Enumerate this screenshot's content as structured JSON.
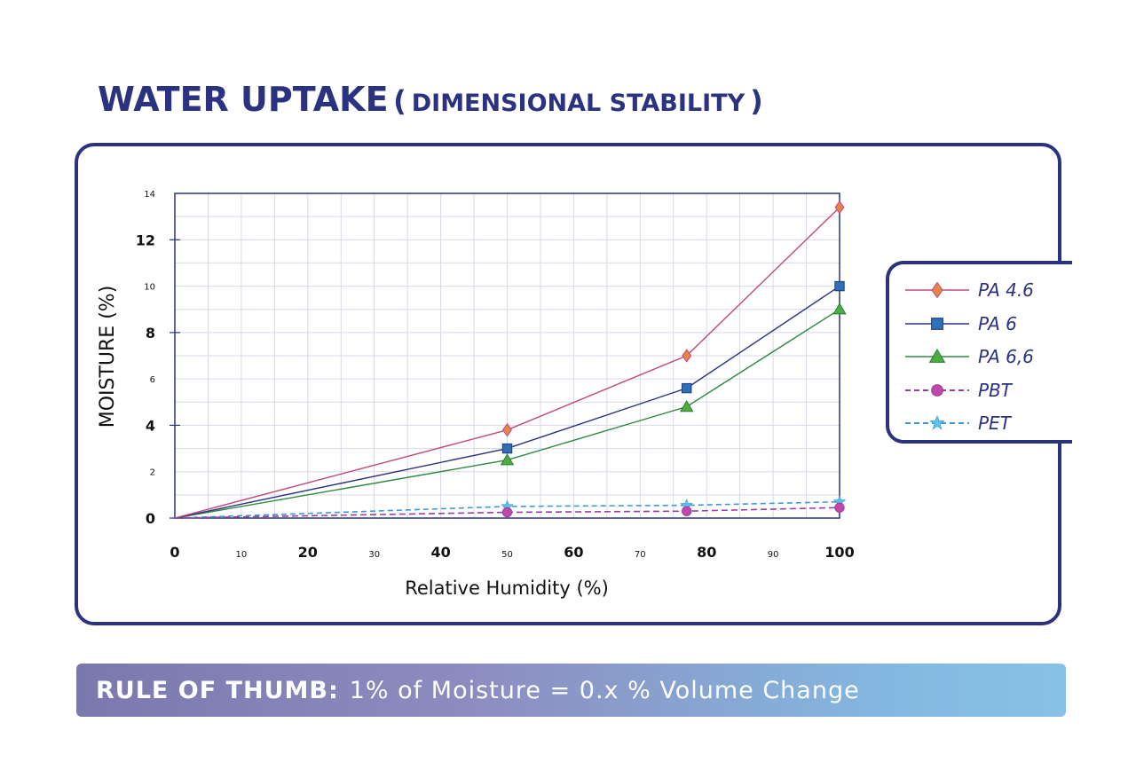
{
  "header": {
    "title": "WATER UPTAKE",
    "paren_open": "(",
    "subtitle": "DIMENSIONAL STABILITY",
    "paren_close": ")"
  },
  "banner": {
    "bold": "RULE OF THUMB:",
    "text": "1% of Moisture = 0.x % Volume Change"
  },
  "colors": {
    "frame": "#2b3280",
    "pa46": "#c0467a",
    "pa46_marker": "#e8844a",
    "pa6": "#2b3280",
    "pa6_marker": "#2e6fb8",
    "pa66": "#2e8a3e",
    "pa66_marker": "#4cae3c",
    "pbt": "#9b3fa0",
    "pbt_marker": "#c048a8",
    "pet": "#3b9ad6",
    "pet_marker": "#5fc0e8"
  },
  "chart_data": {
    "type": "line",
    "xlabel": "Relative Humidity (%)",
    "ylabel": "MOISTURE (%)",
    "xlim": [
      0,
      100
    ],
    "ylim": [
      0,
      14
    ],
    "grid": true,
    "legend_position": "right",
    "x_ticks": [
      {
        "value": 0,
        "label": "0",
        "major": true
      },
      {
        "value": 10,
        "label": "10",
        "major": false
      },
      {
        "value": 20,
        "label": "20",
        "major": true
      },
      {
        "value": 30,
        "label": "30",
        "major": false
      },
      {
        "value": 40,
        "label": "40",
        "major": true
      },
      {
        "value": 50,
        "label": "50",
        "major": false
      },
      {
        "value": 60,
        "label": "60",
        "major": true
      },
      {
        "value": 70,
        "label": "70",
        "major": false
      },
      {
        "value": 80,
        "label": "80",
        "major": true
      },
      {
        "value": 90,
        "label": "90",
        "major": false
      },
      {
        "value": 100,
        "label": "100",
        "major": true
      }
    ],
    "y_ticks": [
      {
        "value": 0,
        "label": "0",
        "major": true
      },
      {
        "value": 2,
        "label": "2",
        "major": false
      },
      {
        "value": 4,
        "label": "4",
        "major": true
      },
      {
        "value": 6,
        "label": "6",
        "major": false
      },
      {
        "value": 8,
        "label": "8",
        "major": true
      },
      {
        "value": 10,
        "label": "10",
        "major": false
      },
      {
        "value": 12,
        "label": "12",
        "major": true
      },
      {
        "value": 14,
        "label": "14",
        "major": false
      }
    ],
    "series": [
      {
        "name": "PA 4.6",
        "key": "pa46",
        "marker": "diamond",
        "dashed": false,
        "x": [
          0,
          50,
          77,
          100
        ],
        "y": [
          0,
          3.8,
          7.0,
          13.4
        ]
      },
      {
        "name": "PA 6",
        "key": "pa6",
        "marker": "square",
        "dashed": false,
        "x": [
          0,
          50,
          77,
          100
        ],
        "y": [
          0,
          3.0,
          5.6,
          10.0
        ]
      },
      {
        "name": "PA 6,6",
        "key": "pa66",
        "marker": "triangle",
        "dashed": false,
        "x": [
          0,
          50,
          77,
          100
        ],
        "y": [
          0,
          2.5,
          4.8,
          9.0
        ]
      },
      {
        "name": "PBT",
        "key": "pbt",
        "marker": "circle",
        "dashed": true,
        "x": [
          0,
          50,
          77,
          100
        ],
        "y": [
          0,
          0.25,
          0.3,
          0.45
        ]
      },
      {
        "name": "PET",
        "key": "pet",
        "marker": "star",
        "dashed": true,
        "x": [
          0,
          50,
          77,
          100
        ],
        "y": [
          0,
          0.5,
          0.55,
          0.7
        ]
      }
    ]
  }
}
